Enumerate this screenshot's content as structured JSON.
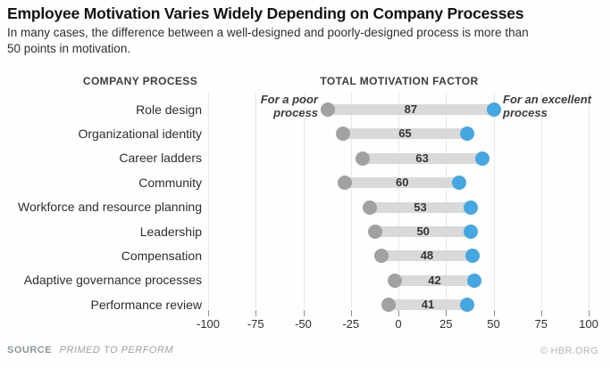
{
  "chart_data": {
    "type": "dumbbell",
    "title": "Employee Motivation Varies Widely Depending on Company Processes",
    "subtitle": "In many cases, the difference between a well-designed and poorly-designed process is more than\n50 points in motivation.",
    "left_column_header": "COMPANY PROCESS",
    "right_column_header": "TOTAL MOTIVATION FACTOR",
    "categories": [
      "Role design",
      "Organizational identity",
      "Career ladders",
      "Community",
      "Workforce and resource planning",
      "Leadership",
      "Compensation",
      "Adaptive governance processes",
      "Performance review"
    ],
    "series": [
      {
        "name": "For a poor process",
        "color": "#a1a1a1",
        "values": [
          -37,
          -29,
          -19,
          -28,
          -15,
          -12,
          -9,
          -2,
          -5
        ]
      },
      {
        "name": "For an excellent process",
        "color": "#45a7e2",
        "values": [
          50,
          36,
          44,
          32,
          38,
          38,
          39,
          40,
          36
        ]
      }
    ],
    "bar_labels": [
      87,
      65,
      63,
      60,
      53,
      50,
      48,
      42,
      41
    ],
    "x_ticks": [
      -100,
      -75,
      -50,
      -25,
      0,
      25,
      50,
      75,
      100
    ],
    "xlim": [
      -100,
      100
    ],
    "grid": true,
    "legend_position": "inline-annotations",
    "bar_color": "#d9d9d9",
    "annotations": {
      "poor": "For a poor\nprocess",
      "excellent": "For an excellent\nprocess"
    }
  },
  "footer": {
    "source_label": "SOURCE",
    "source_value": "PRIMED TO PERFORM",
    "credit": "© HBR.ORG"
  }
}
